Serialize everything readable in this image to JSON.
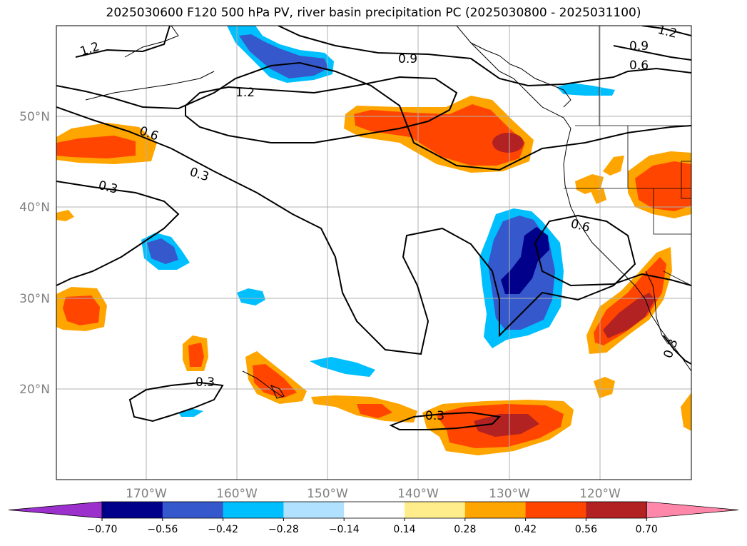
{
  "title": "2025030600 F120 500 hPa PV, river basin precipitation PC (2025030800 - 2025031100)",
  "longitude_ticks": [
    "170°W",
    "160°W",
    "150°W",
    "140°W",
    "130°W",
    "120°W"
  ],
  "latitude_ticks": [
    "50°N",
    "40°N",
    "30°N",
    "20°N"
  ],
  "colorbar": {
    "levels": [
      "−0.70",
      "−0.56",
      "−0.42",
      "−0.28",
      "−0.14",
      "0.14",
      "0.28",
      "0.42",
      "0.56",
      "0.70"
    ],
    "colors": [
      "#9b30cc",
      "#00008b",
      "#3558cc",
      "#00bfff",
      "#b0e2ff",
      "#ffffff",
      "#ffec8b",
      "#ffa500",
      "#ff4500",
      "#b22222",
      "#ff88aa"
    ]
  },
  "contour_labels": [
    {
      "text": "1.2",
      "id": "pv-1-2-nw"
    },
    {
      "text": "1.2",
      "id": "pv-1-2-ne"
    },
    {
      "text": "1.2",
      "id": "pv-1-2-center"
    },
    {
      "text": "0.9",
      "id": "pv-0-9-north"
    },
    {
      "text": "0.9",
      "id": "pv-0-9-ne"
    },
    {
      "text": "0.6",
      "id": "pv-0-6-ne"
    },
    {
      "text": "0.6",
      "id": "pv-0-6-west"
    },
    {
      "text": "0.6",
      "id": "pv-0-6-east"
    },
    {
      "text": "0.3",
      "id": "pv-0-3-a"
    },
    {
      "text": "0.3",
      "id": "pv-0-3-west"
    },
    {
      "text": "0.3",
      "id": "pv-0-3-south"
    },
    {
      "text": "0.3",
      "id": "pv-0-3-loop"
    },
    {
      "text": "0.3",
      "id": "pv-0-3-se"
    }
  ],
  "colors": {
    "negative_strong": "#00008b",
    "negative_mid": "#3558cc",
    "negative_weak": "#00bfff",
    "positive_weak": "#ffa500",
    "positive_mid": "#ff4500",
    "positive_strong": "#b22222",
    "grid": "#b0b0b0",
    "contour": "#000000"
  }
}
